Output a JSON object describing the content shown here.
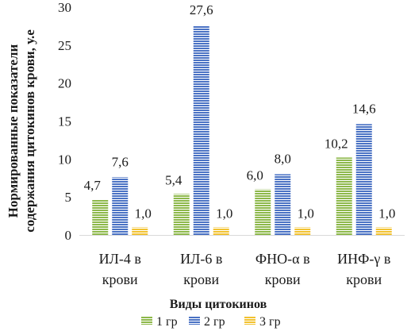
{
  "chart_data": {
    "type": "bar",
    "categories": [
      "ИЛ-4 в крови",
      "ИЛ-6 в крови",
      "ФНО-α в крови",
      "ИНФ-γ в крови"
    ],
    "category_lines": [
      [
        "ИЛ-4 в",
        "крови"
      ],
      [
        "ИЛ-6 в",
        "крови"
      ],
      [
        "ФНО-α в",
        "крови"
      ],
      [
        "ИНФ-γ в",
        "крови"
      ]
    ],
    "series": [
      {
        "name": "1 гр",
        "values": [
          4.7,
          5.4,
          6.0,
          10.2
        ],
        "labels": [
          "4,7",
          "5,4",
          "6,0",
          "10,2"
        ],
        "color": "#8db84a"
      },
      {
        "name": "2 гр",
        "values": [
          7.6,
          27.6,
          8.0,
          14.6
        ],
        "labels": [
          "7,6",
          "27,6",
          "8,0",
          "14,6"
        ],
        "color": "#4a72c4"
      },
      {
        "name": "3 гр",
        "values": [
          1.0,
          1.0,
          1.0,
          1.0
        ],
        "labels": [
          "1,0",
          "1,0",
          "1,0",
          "1,0"
        ],
        "color": "#f2c230"
      }
    ],
    "xlabel": "Виды цитокинов",
    "ylabel_lines": [
      "Нормированные показатели",
      "содержания цитокинов крови, у.е"
    ],
    "ylim": [
      0,
      30
    ],
    "yticks": [
      0,
      5,
      10,
      15,
      20,
      25,
      30
    ],
    "grid": false,
    "legend_position": "bottom"
  }
}
